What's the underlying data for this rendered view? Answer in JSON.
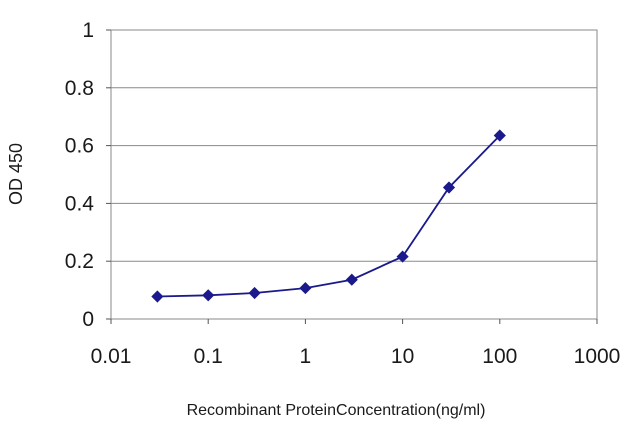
{
  "chart_data": {
    "type": "line",
    "title": "",
    "xlabel": "Recombinant ProteinConcentration(ng/ml)",
    "ylabel": "OD 450",
    "x_scale": "log",
    "xlim": [
      0.01,
      1000
    ],
    "ylim": [
      0,
      1
    ],
    "x_ticks": [
      0.01,
      0.1,
      1,
      10,
      100,
      1000
    ],
    "x_tick_labels": [
      "0.01",
      "0.1",
      "1",
      "10",
      "100",
      "1000"
    ],
    "y_ticks": [
      0,
      0.2,
      0.4,
      0.6,
      0.8,
      1
    ],
    "y_tick_labels": [
      "0",
      "0.2",
      "0.4",
      "0.6",
      "0.8",
      "1"
    ],
    "grid": "horizontal",
    "legend": "none",
    "series": [
      {
        "color": "#1a1a8c",
        "marker": "diamond",
        "x": [
          0.03,
          0.1,
          0.3,
          1,
          3,
          10,
          30,
          100
        ],
        "y": [
          0.078,
          0.082,
          0.09,
          0.107,
          0.136,
          0.216,
          0.455,
          0.635
        ]
      }
    ]
  }
}
